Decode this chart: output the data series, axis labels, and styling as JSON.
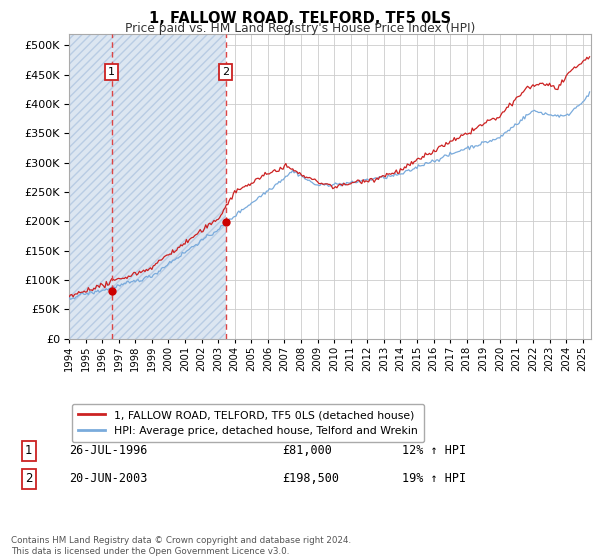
{
  "title": "1, FALLOW ROAD, TELFORD, TF5 0LS",
  "subtitle": "Price paid vs. HM Land Registry's House Price Index (HPI)",
  "legend_line1": "1, FALLOW ROAD, TELFORD, TF5 0LS (detached house)",
  "legend_line2": "HPI: Average price, detached house, Telford and Wrekin",
  "footnote": "Contains HM Land Registry data © Crown copyright and database right 2024.\nThis data is licensed under the Open Government Licence v3.0.",
  "sale1_date": "26-JUL-1996",
  "sale1_price": 81000,
  "sale1_hpi": "12% ↑ HPI",
  "sale1_label": "1",
  "sale1_year": 1996.57,
  "sale2_date": "20-JUN-2003",
  "sale2_price": 198500,
  "sale2_hpi": "19% ↑ HPI",
  "sale2_label": "2",
  "sale2_year": 2003.46,
  "xmin": 1994,
  "xmax": 2025.5,
  "ymin": 0,
  "ymax": 520000,
  "yticks": [
    0,
    50000,
    100000,
    150000,
    200000,
    250000,
    300000,
    350000,
    400000,
    450000,
    500000
  ],
  "hatch_color": "#b8cce4",
  "hatch_bg": "#dce6f1",
  "grid_color": "#cccccc",
  "sale_line_color": "#cc2222",
  "hpi_line_color": "#7aabdc",
  "marker_color": "#cc0000",
  "title_fontsize": 10.5,
  "subtitle_fontsize": 9
}
